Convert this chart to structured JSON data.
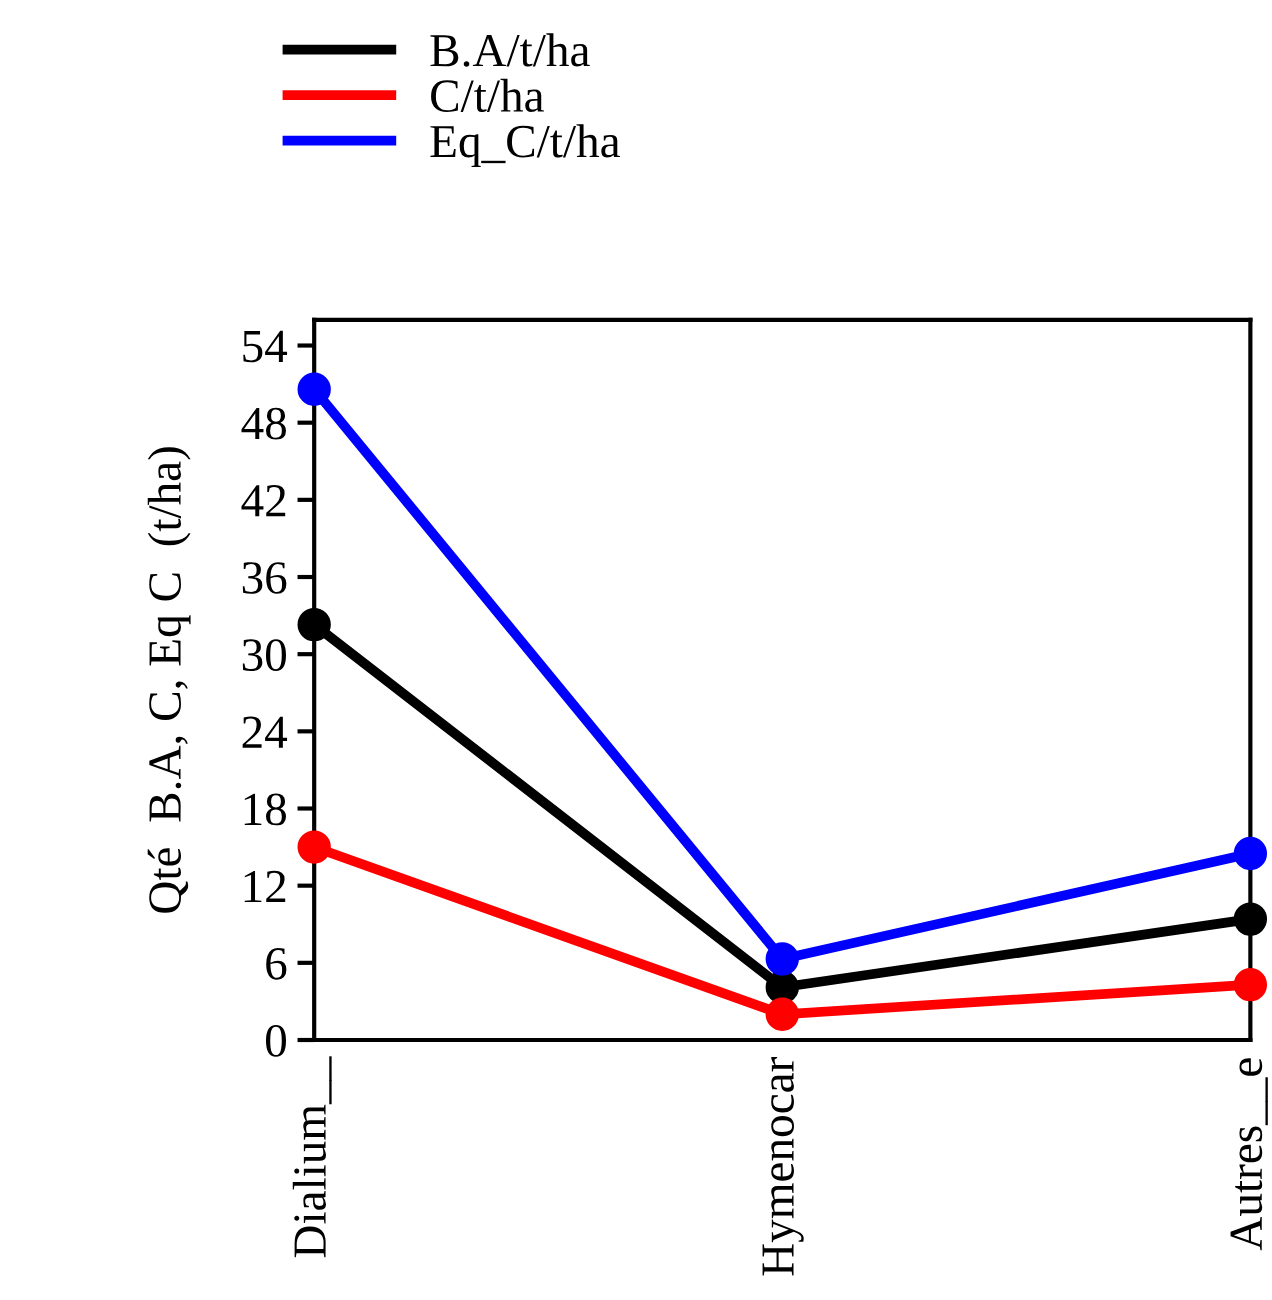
{
  "chart_data": {
    "type": "line",
    "ylabel": "Qté  B.A, C, Eq C  (t/ha)",
    "categories": [
      "Dialium__",
      "Hymenocar",
      "Autres__e"
    ],
    "series": [
      {
        "name": "B.A/t/ha",
        "color": "#000000",
        "values": [
          32.3,
          4.1,
          9.4
        ]
      },
      {
        "name": "C/t/ha",
        "color": "#ff0000",
        "values": [
          15.0,
          2.0,
          4.3
        ]
      },
      {
        "name": "Eq_C/t/ha",
        "color": "#0000ff",
        "values": [
          50.6,
          6.3,
          14.5
        ]
      }
    ],
    "ylim": [
      0,
      56
    ],
    "yticks": [
      0,
      6,
      12,
      18,
      24,
      30,
      36,
      42,
      48,
      54
    ],
    "grid": false,
    "legend": "top left",
    "marker": "circle",
    "line_style": "solid"
  }
}
